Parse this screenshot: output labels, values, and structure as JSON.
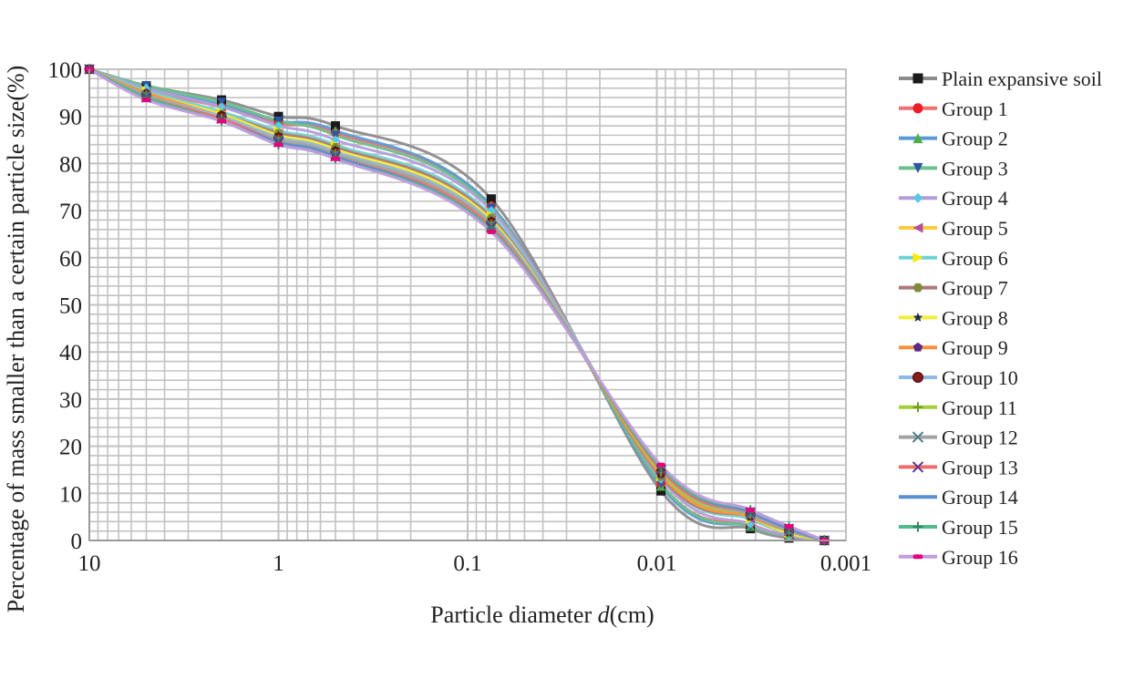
{
  "chart_data": {
    "type": "line",
    "x_scale": "log",
    "x_reversed": true,
    "xlabel_main": "Particle diameter ",
    "xlabel_italic": "d",
    "xlabel_unit": "(cm)",
    "ylabel": "Percentage of mass smaller than a certain particle size(%)",
    "xlim": [
      10,
      0.001
    ],
    "ylim": [
      0,
      100
    ],
    "x_ticks": [
      10,
      1,
      0.1,
      0.01,
      0.001
    ],
    "x_tick_labels": [
      "10",
      "1",
      "0.1",
      "0.01",
      "0.001"
    ],
    "y_ticks": [
      0,
      10,
      20,
      30,
      40,
      50,
      60,
      70,
      80,
      90,
      100
    ],
    "y_tick_labels": [
      "0",
      "10",
      "20",
      "30",
      "40",
      "50",
      "60",
      "70",
      "80",
      "90",
      "100"
    ],
    "grid": true,
    "legend_position": "right",
    "x": [
      10,
      5,
      2,
      1,
      0.5,
      0.075,
      0.0095,
      0.0032,
      0.002,
      0.0013
    ],
    "series": [
      {
        "name": "Plain expansive soil",
        "color": "#8c8c8c",
        "marker": "square",
        "marker_color": "#1a1a1a",
        "values": [
          100,
          96.5,
          93.5,
          90,
          88,
          72.5,
          10.5,
          2.5,
          0.5,
          0
        ]
      },
      {
        "name": "Group 1",
        "color": "#f07070",
        "marker": "circle",
        "marker_color": "#ee1c25",
        "values": [
          100,
          95.5,
          92,
          88.5,
          86.5,
          71,
          12,
          3.5,
          1,
          0
        ]
      },
      {
        "name": "Group 2",
        "color": "#5b9bd5",
        "marker": "triangle-up",
        "marker_color": "#4fae4a",
        "values": [
          100,
          96,
          92.5,
          89,
          87,
          71,
          11.5,
          3,
          1,
          0
        ]
      },
      {
        "name": "Group 3",
        "color": "#6cc08b",
        "marker": "triangle-down",
        "marker_color": "#2f55a4",
        "values": [
          100,
          96.5,
          93,
          89,
          86,
          70.5,
          12,
          3,
          1,
          0
        ]
      },
      {
        "name": "Group 4",
        "color": "#b39ddb",
        "marker": "diamond",
        "marker_color": "#5bc8e8",
        "values": [
          100,
          96,
          92,
          88,
          85,
          70,
          13,
          3.5,
          1,
          0
        ]
      },
      {
        "name": "Group 5",
        "color": "#ffc93c",
        "marker": "triangle-left",
        "marker_color": "#b04fa0",
        "values": [
          100,
          95,
          90.5,
          86.5,
          83.5,
          68.5,
          13.5,
          4.5,
          1.5,
          0
        ]
      },
      {
        "name": "Group 6",
        "color": "#6fd3d6",
        "marker": "triangle-right",
        "marker_color": "#ffe800",
        "values": [
          100,
          95.5,
          91,
          87,
          84,
          69,
          13.5,
          4.5,
          1.5,
          0
        ]
      },
      {
        "name": "Group 7",
        "color": "#b07878",
        "marker": "hexagon",
        "marker_color": "#7d8c3a",
        "values": [
          100,
          95,
          90.5,
          86.5,
          83.5,
          68.5,
          13.5,
          5,
          1.5,
          0
        ]
      },
      {
        "name": "Group 8",
        "color": "#f2ee3a",
        "marker": "star",
        "marker_color": "#1f2d5a",
        "values": [
          100,
          95,
          90.5,
          86,
          83,
          68,
          14,
          5,
          1.5,
          0
        ]
      },
      {
        "name": "Group 9",
        "color": "#f7913d",
        "marker": "pentagon",
        "marker_color": "#5a2a86",
        "values": [
          100,
          95,
          90,
          85.5,
          82.5,
          67.5,
          14,
          5,
          2,
          0
        ]
      },
      {
        "name": "Group 10",
        "color": "#8fb8e4",
        "marker": "ball",
        "marker_color": "#8b1a1a",
        "values": [
          100,
          94.5,
          90,
          85.5,
          82.5,
          67.5,
          14.5,
          5.5,
          2,
          0
        ]
      },
      {
        "name": "Group 11",
        "color": "#a3cf3a",
        "marker": "plus",
        "marker_color": "#6f9a2a",
        "values": [
          100,
          94.5,
          89.5,
          85,
          82,
          67,
          14.5,
          5.5,
          2,
          0
        ]
      },
      {
        "name": "Group 12",
        "color": "#a3a3a3",
        "marker": "x",
        "marker_color": "#4a7f8a",
        "values": [
          100,
          94.5,
          89.5,
          85,
          82,
          67,
          15,
          5.5,
          2,
          0
        ]
      },
      {
        "name": "Group 13",
        "color": "#f26b6b",
        "marker": "x",
        "marker_color": "#5a3a8a",
        "values": [
          100,
          94,
          89.5,
          84.5,
          81.5,
          66.5,
          15,
          6,
          2.5,
          0
        ]
      },
      {
        "name": "Group 14",
        "color": "#5b8fd0",
        "marker": "none",
        "marker_color": "#5b8fd0",
        "values": [
          100,
          94,
          89,
          84.5,
          81.5,
          66,
          15.5,
          6,
          2.5,
          0
        ]
      },
      {
        "name": "Group 15",
        "color": "#52b98c",
        "marker": "plus",
        "marker_color": "#2f8a5a",
        "values": [
          100,
          94,
          89,
          84,
          81,
          66,
          15.5,
          6.5,
          3,
          0
        ]
      },
      {
        "name": "Group 16",
        "color": "#c49be0",
        "marker": "dash",
        "marker_color": "#e6007e",
        "values": [
          100,
          93.5,
          89,
          84,
          81,
          65.5,
          16,
          6.5,
          3,
          0
        ]
      }
    ]
  }
}
